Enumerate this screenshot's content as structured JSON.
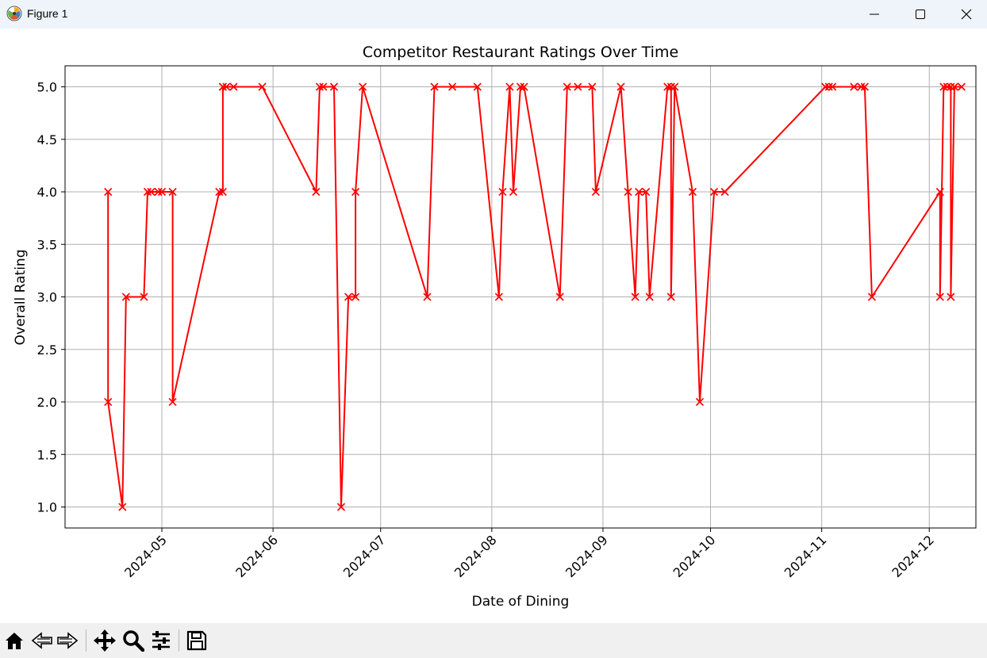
{
  "window": {
    "title": "Figure 1",
    "icon": "matplotlib-logo-icon",
    "controls": [
      "minimize-icon",
      "maximize-icon",
      "close-icon"
    ]
  },
  "toolbar": {
    "buttons": [
      "home-icon",
      "back-arrow-icon",
      "forward-arrow-icon",
      "pan-icon",
      "zoom-icon",
      "configure-subplots-icon",
      "save-icon"
    ]
  },
  "chart_data": {
    "type": "line",
    "title": "Competitor Restaurant Ratings Over Time",
    "xlabel": "Date of Dining",
    "ylabel": "Overall Rating",
    "x_type": "date",
    "xlim": [
      "2024-04-04",
      "2024-12-14"
    ],
    "ylim": [
      0.8,
      5.2
    ],
    "x_ticks": [
      "2024-05-01",
      "2024-06-01",
      "2024-07-01",
      "2024-08-01",
      "2024-09-01",
      "2024-10-01",
      "2024-11-01",
      "2024-12-01"
    ],
    "x_tick_labels": [
      "2024-05",
      "2024-06",
      "2024-07",
      "2024-08",
      "2024-09",
      "2024-10",
      "2024-11",
      "2024-12"
    ],
    "y_ticks": [
      1.0,
      1.5,
      2.0,
      2.5,
      3.0,
      3.5,
      4.0,
      4.5,
      5.0
    ],
    "y_tick_labels": [
      "1.0",
      "1.5",
      "2.0",
      "2.5",
      "3.0",
      "3.5",
      "4.0",
      "4.5",
      "5.0"
    ],
    "grid": true,
    "color": "#ff0000",
    "marker": "x",
    "series": [
      {
        "x": [
          "2024-04-16",
          "2024-04-16",
          "2024-04-20",
          "2024-04-21",
          "2024-04-26",
          "2024-04-27",
          "2024-04-28",
          "2024-04-30",
          "2024-05-01",
          "2024-05-04",
          "2024-05-04",
          "2024-05-17",
          "2024-05-18",
          "2024-05-18",
          "2024-05-18",
          "2024-05-19",
          "2024-05-21",
          "2024-05-29",
          "2024-06-13",
          "2024-06-14",
          "2024-06-15",
          "2024-06-18",
          "2024-06-20",
          "2024-06-22",
          "2024-06-24",
          "2024-06-24",
          "2024-06-26",
          "2024-07-14",
          "2024-07-16",
          "2024-07-21",
          "2024-07-28",
          "2024-08-03",
          "2024-08-04",
          "2024-08-06",
          "2024-08-07",
          "2024-08-09",
          "2024-08-10",
          "2024-08-20",
          "2024-08-22",
          "2024-08-25",
          "2024-08-29",
          "2024-08-30",
          "2024-09-06",
          "2024-09-08",
          "2024-09-10",
          "2024-09-11",
          "2024-09-13",
          "2024-09-14",
          "2024-09-19",
          "2024-09-20",
          "2024-09-20",
          "2024-09-21",
          "2024-09-26",
          "2024-09-28",
          "2024-10-02",
          "2024-10-05",
          "2024-11-02",
          "2024-11-03",
          "2024-11-04",
          "2024-11-10",
          "2024-11-12",
          "2024-11-13",
          "2024-11-15",
          "2024-12-04",
          "2024-12-04",
          "2024-12-05",
          "2024-12-06",
          "2024-12-07",
          "2024-12-07",
          "2024-12-08",
          "2024-12-10"
        ],
        "y": [
          4,
          2,
          1,
          3,
          3,
          4,
          4,
          4,
          4,
          4,
          2,
          4,
          4,
          5,
          5,
          5,
          5,
          5,
          4,
          5,
          5,
          5,
          1,
          3,
          3,
          4,
          5,
          3,
          5,
          5,
          5,
          3,
          4,
          5,
          4,
          5,
          5,
          3,
          5,
          5,
          5,
          4,
          5,
          4,
          3,
          4,
          4,
          3,
          5,
          5,
          3,
          5,
          4,
          2,
          4,
          4,
          5,
          5,
          5,
          5,
          5,
          5,
          3,
          4,
          3,
          5,
          5,
          5,
          3,
          5,
          5
        ]
      }
    ]
  }
}
